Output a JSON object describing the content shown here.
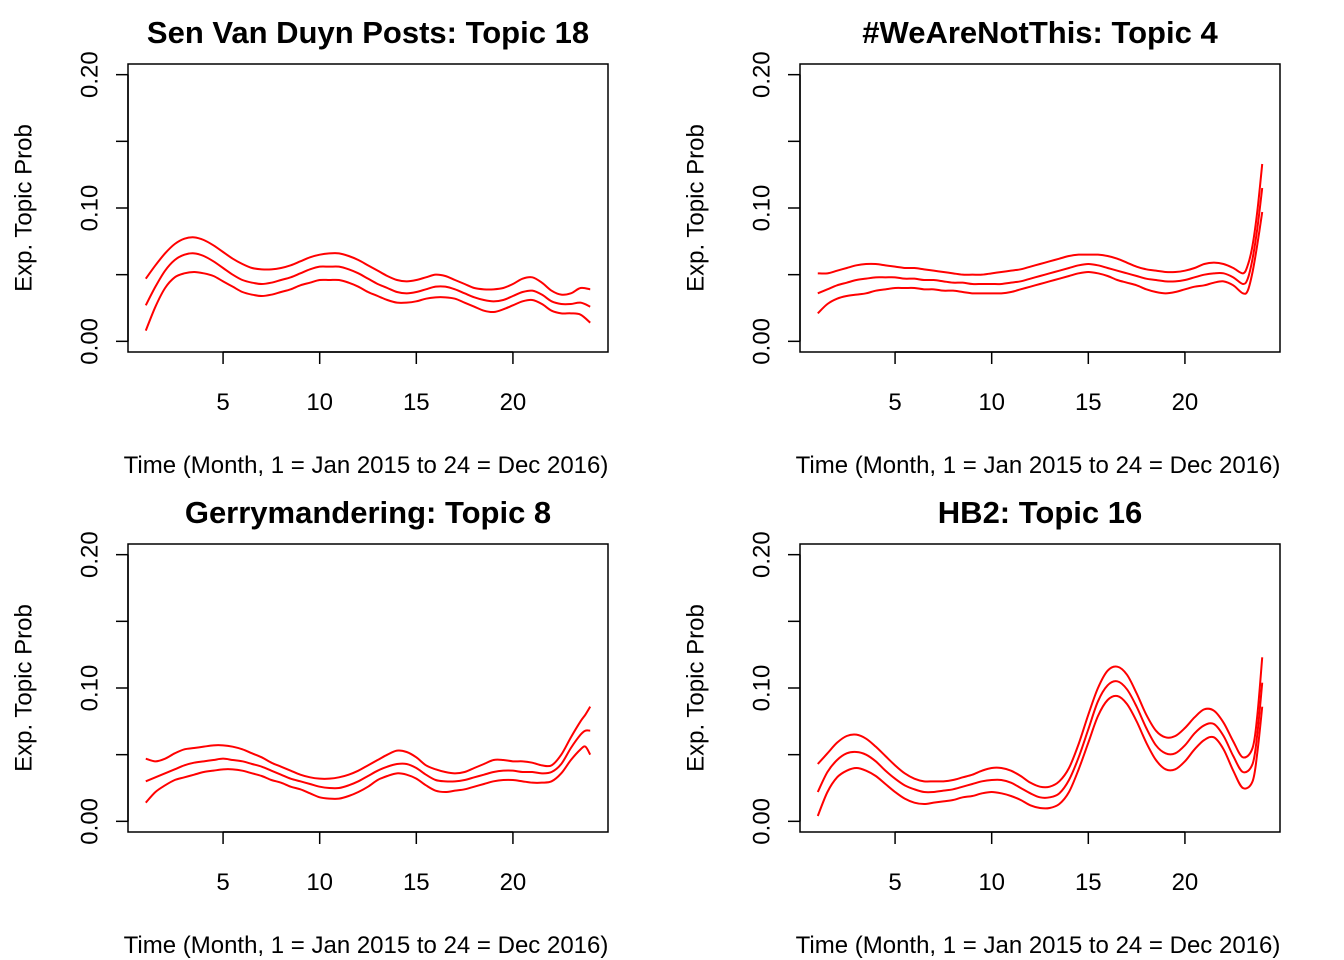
{
  "line_color": "#ff0000",
  "chart_data": [
    {
      "type": "line",
      "title": "Sen Van Duyn Posts: Topic 18",
      "xlabel": "Time (Month, 1 = Jan 2015 to 24 = Dec 2016)",
      "ylabel": "Exp. Topic Prob",
      "xlim": [
        1,
        24
      ],
      "ylim": [
        0,
        0.2
      ],
      "xticks": [
        5,
        10,
        15,
        20
      ],
      "xtick_labels": [
        "5",
        "10",
        "15",
        "20"
      ],
      "yticks": [
        0,
        0.05,
        0.1,
        0.15,
        0.2
      ],
      "ytick_labels": [
        "0.00",
        "",
        "0.10",
        "",
        "0.20"
      ],
      "x": [
        1,
        1.5,
        2,
        2.5,
        3,
        3.5,
        4,
        4.5,
        5,
        5.5,
        6,
        6.5,
        7,
        7.5,
        8,
        8.5,
        9,
        9.5,
        10,
        10.5,
        11,
        11.5,
        12,
        12.5,
        13,
        13.5,
        14,
        14.5,
        15,
        15.5,
        16,
        16.5,
        17,
        17.5,
        18,
        18.5,
        19,
        19.5,
        20,
        20.5,
        21,
        21.5,
        22,
        22.5,
        23,
        23.5,
        24
      ],
      "series": [
        {
          "values": [
            0.047,
            0.057,
            0.066,
            0.073,
            0.077,
            0.078,
            0.076,
            0.072,
            0.067,
            0.062,
            0.058,
            0.055,
            0.054,
            0.054,
            0.055,
            0.057,
            0.06,
            0.063,
            0.065,
            0.066,
            0.066,
            0.064,
            0.061,
            0.057,
            0.053,
            0.049,
            0.046,
            0.045,
            0.046,
            0.048,
            0.05,
            0.049,
            0.046,
            0.043,
            0.04,
            0.039,
            0.039,
            0.04,
            0.043,
            0.047,
            0.048,
            0.044,
            0.038,
            0.035,
            0.036,
            0.04,
            0.039
          ]
        },
        {
          "values": [
            0.027,
            0.041,
            0.053,
            0.061,
            0.065,
            0.066,
            0.064,
            0.06,
            0.055,
            0.05,
            0.046,
            0.044,
            0.043,
            0.044,
            0.046,
            0.048,
            0.051,
            0.054,
            0.056,
            0.056,
            0.056,
            0.054,
            0.051,
            0.047,
            0.043,
            0.04,
            0.037,
            0.036,
            0.037,
            0.039,
            0.041,
            0.041,
            0.039,
            0.036,
            0.033,
            0.031,
            0.03,
            0.031,
            0.034,
            0.037,
            0.038,
            0.035,
            0.03,
            0.028,
            0.028,
            0.029,
            0.026
          ]
        },
        {
          "values": [
            0.008,
            0.026,
            0.04,
            0.048,
            0.051,
            0.052,
            0.051,
            0.049,
            0.045,
            0.041,
            0.037,
            0.035,
            0.034,
            0.035,
            0.037,
            0.039,
            0.042,
            0.044,
            0.046,
            0.046,
            0.046,
            0.044,
            0.041,
            0.037,
            0.034,
            0.031,
            0.029,
            0.029,
            0.03,
            0.032,
            0.033,
            0.033,
            0.032,
            0.029,
            0.026,
            0.023,
            0.022,
            0.024,
            0.027,
            0.03,
            0.031,
            0.028,
            0.023,
            0.021,
            0.021,
            0.02,
            0.014
          ]
        }
      ]
    },
    {
      "type": "line",
      "title": "#WeAreNotThis: Topic 4",
      "xlabel": "Time (Month, 1 = Jan 2015 to 24 = Dec 2016)",
      "ylabel": "Exp. Topic Prob",
      "xlim": [
        1,
        24
      ],
      "ylim": [
        0,
        0.2
      ],
      "xticks": [
        5,
        10,
        15,
        20
      ],
      "xtick_labels": [
        "5",
        "10",
        "15",
        "20"
      ],
      "yticks": [
        0,
        0.05,
        0.1,
        0.15,
        0.2
      ],
      "ytick_labels": [
        "0.00",
        "",
        "0.10",
        "",
        "0.20"
      ],
      "x": [
        1,
        1.5,
        2,
        2.5,
        3,
        3.5,
        4,
        4.5,
        5,
        5.5,
        6,
        6.5,
        7,
        7.5,
        8,
        8.5,
        9,
        9.5,
        10,
        10.5,
        11,
        11.5,
        12,
        12.5,
        13,
        13.5,
        14,
        14.5,
        15,
        15.5,
        16,
        16.5,
        17,
        17.5,
        18,
        18.5,
        19,
        19.5,
        20,
        20.5,
        21,
        21.5,
        22,
        22.5,
        23,
        23.25,
        23.5,
        23.75,
        24
      ],
      "series": [
        {
          "values": [
            0.051,
            0.051,
            0.053,
            0.055,
            0.057,
            0.058,
            0.058,
            0.057,
            0.056,
            0.055,
            0.055,
            0.054,
            0.053,
            0.052,
            0.051,
            0.05,
            0.05,
            0.05,
            0.051,
            0.052,
            0.053,
            0.054,
            0.056,
            0.058,
            0.06,
            0.062,
            0.064,
            0.065,
            0.065,
            0.065,
            0.064,
            0.062,
            0.059,
            0.056,
            0.054,
            0.053,
            0.052,
            0.052,
            0.053,
            0.055,
            0.058,
            0.059,
            0.058,
            0.055,
            0.051,
            0.057,
            0.072,
            0.098,
            0.133
          ]
        },
        {
          "values": [
            0.036,
            0.039,
            0.042,
            0.044,
            0.046,
            0.047,
            0.048,
            0.048,
            0.048,
            0.047,
            0.047,
            0.046,
            0.046,
            0.045,
            0.044,
            0.044,
            0.043,
            0.043,
            0.043,
            0.043,
            0.044,
            0.045,
            0.047,
            0.049,
            0.051,
            0.053,
            0.055,
            0.057,
            0.058,
            0.057,
            0.055,
            0.053,
            0.051,
            0.049,
            0.047,
            0.046,
            0.045,
            0.045,
            0.046,
            0.048,
            0.05,
            0.051,
            0.051,
            0.048,
            0.043,
            0.047,
            0.062,
            0.085,
            0.115
          ]
        },
        {
          "values": [
            0.021,
            0.028,
            0.032,
            0.034,
            0.035,
            0.036,
            0.038,
            0.039,
            0.04,
            0.04,
            0.04,
            0.039,
            0.039,
            0.038,
            0.038,
            0.037,
            0.036,
            0.036,
            0.036,
            0.036,
            0.037,
            0.039,
            0.041,
            0.043,
            0.045,
            0.047,
            0.049,
            0.051,
            0.052,
            0.051,
            0.049,
            0.046,
            0.044,
            0.042,
            0.039,
            0.037,
            0.036,
            0.037,
            0.039,
            0.041,
            0.042,
            0.044,
            0.045,
            0.042,
            0.036,
            0.038,
            0.052,
            0.073,
            0.097
          ]
        }
      ]
    },
    {
      "type": "line",
      "title": "Gerrymandering: Topic 8",
      "xlabel": "Time (Month, 1 = Jan 2015 to 24 = Dec 2016)",
      "ylabel": "Exp. Topic Prob",
      "xlim": [
        1,
        24
      ],
      "ylim": [
        0,
        0.2
      ],
      "xticks": [
        5,
        10,
        15,
        20
      ],
      "xtick_labels": [
        "5",
        "10",
        "15",
        "20"
      ],
      "yticks": [
        0,
        0.05,
        0.1,
        0.15,
        0.2
      ],
      "ytick_labels": [
        "0.00",
        "",
        "0.10",
        "",
        "0.20"
      ],
      "x": [
        1,
        1.5,
        2,
        2.5,
        3,
        3.5,
        4,
        4.5,
        5,
        5.5,
        6,
        6.5,
        7,
        7.5,
        8,
        8.5,
        9,
        9.5,
        10,
        10.5,
        11,
        11.5,
        12,
        12.5,
        13,
        13.5,
        14,
        14.5,
        15,
        15.5,
        16,
        16.5,
        17,
        17.5,
        18,
        18.5,
        19,
        19.5,
        20,
        20.5,
        21,
        21.5,
        22,
        22.5,
        23,
        23.5,
        23.75,
        24
      ],
      "series": [
        {
          "values": [
            0.047,
            0.045,
            0.047,
            0.051,
            0.054,
            0.055,
            0.056,
            0.057,
            0.057,
            0.056,
            0.054,
            0.051,
            0.048,
            0.044,
            0.041,
            0.038,
            0.035,
            0.033,
            0.032,
            0.032,
            0.033,
            0.035,
            0.038,
            0.042,
            0.046,
            0.05,
            0.053,
            0.052,
            0.048,
            0.042,
            0.039,
            0.037,
            0.036,
            0.037,
            0.04,
            0.043,
            0.046,
            0.046,
            0.045,
            0.045,
            0.044,
            0.042,
            0.042,
            0.05,
            0.063,
            0.075,
            0.08,
            0.086
          ]
        },
        {
          "values": [
            0.03,
            0.033,
            0.036,
            0.039,
            0.042,
            0.044,
            0.045,
            0.046,
            0.047,
            0.046,
            0.045,
            0.043,
            0.041,
            0.038,
            0.035,
            0.032,
            0.03,
            0.028,
            0.026,
            0.025,
            0.025,
            0.027,
            0.03,
            0.034,
            0.038,
            0.041,
            0.043,
            0.043,
            0.04,
            0.035,
            0.031,
            0.03,
            0.03,
            0.031,
            0.033,
            0.035,
            0.037,
            0.038,
            0.038,
            0.037,
            0.037,
            0.036,
            0.037,
            0.043,
            0.055,
            0.065,
            0.068,
            0.068
          ]
        },
        {
          "values": [
            0.014,
            0.022,
            0.027,
            0.031,
            0.033,
            0.035,
            0.037,
            0.038,
            0.039,
            0.039,
            0.038,
            0.036,
            0.034,
            0.031,
            0.029,
            0.026,
            0.024,
            0.021,
            0.018,
            0.017,
            0.017,
            0.019,
            0.022,
            0.026,
            0.031,
            0.034,
            0.036,
            0.035,
            0.032,
            0.027,
            0.023,
            0.022,
            0.023,
            0.024,
            0.026,
            0.028,
            0.03,
            0.031,
            0.031,
            0.03,
            0.029,
            0.029,
            0.03,
            0.036,
            0.046,
            0.054,
            0.056,
            0.05
          ]
        }
      ]
    },
    {
      "type": "line",
      "title": "HB2: Topic 16",
      "xlabel": "Time (Month, 1 = Jan 2015 to 24 = Dec 2016)",
      "ylabel": "Exp. Topic Prob",
      "xlim": [
        1,
        24
      ],
      "ylim": [
        0,
        0.2
      ],
      "xticks": [
        5,
        10,
        15,
        20
      ],
      "xtick_labels": [
        "5",
        "10",
        "15",
        "20"
      ],
      "yticks": [
        0,
        0.05,
        0.1,
        0.15,
        0.2
      ],
      "ytick_labels": [
        "0.00",
        "",
        "0.10",
        "",
        "0.20"
      ],
      "x": [
        1,
        1.5,
        2,
        2.5,
        3,
        3.5,
        4,
        4.5,
        5,
        5.5,
        6,
        6.5,
        7,
        7.5,
        8,
        8.5,
        9,
        9.5,
        10,
        10.5,
        11,
        11.5,
        12,
        12.5,
        13,
        13.5,
        14,
        14.5,
        15,
        15.5,
        16,
        16.5,
        17,
        17.5,
        18,
        18.5,
        19,
        19.5,
        20,
        20.5,
        21,
        21.5,
        22,
        22.5,
        23,
        23.5,
        23.75,
        24
      ],
      "series": [
        {
          "values": [
            0.043,
            0.051,
            0.059,
            0.064,
            0.065,
            0.062,
            0.056,
            0.049,
            0.042,
            0.036,
            0.032,
            0.03,
            0.03,
            0.03,
            0.031,
            0.033,
            0.035,
            0.038,
            0.04,
            0.04,
            0.038,
            0.034,
            0.029,
            0.026,
            0.026,
            0.03,
            0.04,
            0.058,
            0.08,
            0.1,
            0.113,
            0.116,
            0.11,
            0.096,
            0.08,
            0.068,
            0.063,
            0.064,
            0.07,
            0.078,
            0.084,
            0.083,
            0.074,
            0.06,
            0.048,
            0.055,
            0.08,
            0.123
          ]
        },
        {
          "values": [
            0.022,
            0.037,
            0.046,
            0.051,
            0.052,
            0.05,
            0.045,
            0.038,
            0.032,
            0.027,
            0.024,
            0.022,
            0.022,
            0.023,
            0.024,
            0.026,
            0.028,
            0.03,
            0.031,
            0.031,
            0.029,
            0.025,
            0.021,
            0.018,
            0.018,
            0.021,
            0.031,
            0.048,
            0.069,
            0.09,
            0.102,
            0.105,
            0.099,
            0.086,
            0.07,
            0.057,
            0.051,
            0.051,
            0.057,
            0.066,
            0.072,
            0.073,
            0.064,
            0.049,
            0.037,
            0.043,
            0.066,
            0.104
          ]
        },
        {
          "values": [
            0.004,
            0.022,
            0.033,
            0.038,
            0.04,
            0.038,
            0.034,
            0.028,
            0.022,
            0.017,
            0.014,
            0.013,
            0.014,
            0.015,
            0.016,
            0.018,
            0.019,
            0.021,
            0.022,
            0.021,
            0.019,
            0.016,
            0.012,
            0.01,
            0.01,
            0.013,
            0.022,
            0.039,
            0.059,
            0.079,
            0.091,
            0.094,
            0.088,
            0.075,
            0.059,
            0.046,
            0.039,
            0.039,
            0.045,
            0.054,
            0.061,
            0.063,
            0.054,
            0.038,
            0.025,
            0.03,
            0.052,
            0.086
          ]
        }
      ]
    }
  ]
}
